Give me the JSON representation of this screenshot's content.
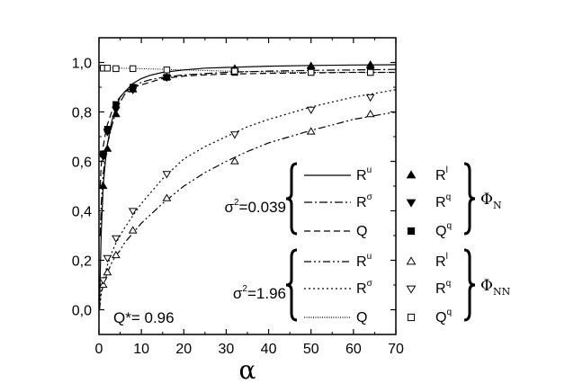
{
  "chart_data": {
    "type": "line",
    "xlabel": "α",
    "ylabel": "",
    "xlim": [
      0,
      70
    ],
    "ylim": [
      -0.1,
      1.1
    ],
    "xticks": [
      0,
      10,
      20,
      30,
      40,
      50,
      60,
      70
    ],
    "xtick_labels": [
      "0",
      "10",
      "20",
      "30",
      "40",
      "50",
      "60",
      "70"
    ],
    "yticks": [
      0.0,
      0.2,
      0.4,
      0.6,
      0.8,
      1.0
    ],
    "ytick_labels": [
      "0,0",
      "0,2",
      "0,4",
      "0,6",
      "0,8",
      "1,0"
    ],
    "annotation": "Q*= 0.96",
    "groups": [
      {
        "sigma_label": "σ",
        "sigma_sup": "2",
        "sigma_value": "=0.039",
        "phi": "Φ",
        "phi_sub": "N"
      },
      {
        "sigma_label": "σ",
        "sigma_sup": "2",
        "sigma_value": "=1.96",
        "phi": "Φ",
        "phi_sub": "NN"
      }
    ],
    "curves": [
      {
        "group": 0,
        "base": "R",
        "sup": "u",
        "style": "solid",
        "x": [
          0.1,
          0.5,
          1,
          1.5,
          2,
          3,
          4,
          5,
          6,
          8,
          10,
          12,
          15,
          20,
          25,
          30,
          40,
          50,
          60,
          70
        ],
        "y": [
          0.0,
          0.3,
          0.5,
          0.6,
          0.67,
          0.76,
          0.82,
          0.86,
          0.88,
          0.915,
          0.935,
          0.948,
          0.96,
          0.97,
          0.977,
          0.98,
          0.985,
          0.988,
          0.99,
          0.991
        ]
      },
      {
        "group": 0,
        "base": "R",
        "sup": "σ",
        "style": "dashdot",
        "x": [
          0.3,
          0.5,
          1,
          1.5,
          2,
          3,
          4,
          5,
          6,
          8,
          10,
          12,
          15,
          20,
          25,
          30,
          40,
          50,
          60,
          70
        ],
        "y": [
          0.3,
          0.42,
          0.55,
          0.62,
          0.67,
          0.74,
          0.8,
          0.84,
          0.87,
          0.9,
          0.92,
          0.93,
          0.94,
          0.95,
          0.955,
          0.96,
          0.965,
          0.968,
          0.97,
          0.972
        ]
      },
      {
        "group": 0,
        "base": "Q",
        "sup": "",
        "style": "dashed",
        "x": [
          0.3,
          0.5,
          1,
          1.5,
          2,
          3,
          4,
          5,
          6,
          8,
          10,
          12,
          15,
          20,
          25,
          30,
          40,
          50,
          60,
          70
        ],
        "y": [
          0.5,
          0.58,
          0.66,
          0.71,
          0.75,
          0.8,
          0.84,
          0.86,
          0.88,
          0.9,
          0.91,
          0.92,
          0.935,
          0.945,
          0.95,
          0.953,
          0.956,
          0.958,
          0.96,
          0.96
        ]
      },
      {
        "group": 1,
        "base": "R",
        "sup": "u",
        "style": "dashdotdot",
        "x": [
          0.1,
          0.5,
          1,
          2,
          3,
          4,
          5,
          6,
          8,
          10,
          15,
          20,
          25,
          30,
          35,
          40,
          50,
          60,
          70
        ],
        "y": [
          0.0,
          0.06,
          0.1,
          0.15,
          0.19,
          0.22,
          0.24,
          0.27,
          0.31,
          0.35,
          0.43,
          0.5,
          0.555,
          0.6,
          0.64,
          0.675,
          0.725,
          0.77,
          0.8
        ]
      },
      {
        "group": 1,
        "base": "R",
        "sup": "σ",
        "style": "dotted",
        "x": [
          0.1,
          0.5,
          1,
          2,
          3,
          4,
          5,
          6,
          8,
          10,
          15,
          20,
          25,
          30,
          35,
          40,
          50,
          60,
          70
        ],
        "y": [
          0.0,
          0.08,
          0.12,
          0.18,
          0.23,
          0.27,
          0.3,
          0.33,
          0.38,
          0.43,
          0.53,
          0.61,
          0.66,
          0.7,
          0.74,
          0.77,
          0.82,
          0.86,
          0.89
        ]
      },
      {
        "group": 1,
        "base": "Q",
        "sup": "",
        "style": "dense",
        "x": [
          0,
          5,
          10,
          20,
          30,
          40,
          50,
          60,
          70
        ],
        "y": [
          0.98,
          0.977,
          0.975,
          0.97,
          0.965,
          0.962,
          0.96,
          0.96,
          0.96
        ]
      }
    ],
    "markers": [
      {
        "group": 0,
        "base": "R",
        "sup": "l",
        "shape": "triangle-up",
        "filled": true,
        "x": [
          1,
          2,
          4,
          8,
          16,
          32,
          50,
          64
        ],
        "y": [
          0.5,
          0.65,
          0.79,
          0.89,
          0.94,
          0.975,
          0.985,
          0.99
        ]
      },
      {
        "group": 0,
        "base": "R",
        "sup": "q",
        "shape": "triangle-down",
        "filled": true,
        "x": [
          1,
          2,
          4,
          8,
          16,
          32,
          50,
          64
        ],
        "y": [
          0.62,
          0.72,
          0.81,
          0.89,
          0.94,
          0.965,
          0.97,
          0.97
        ]
      },
      {
        "group": 0,
        "base": "Q",
        "sup": "q",
        "shape": "square",
        "filled": true,
        "x": [
          1,
          2,
          4,
          8,
          16,
          32,
          50,
          64
        ],
        "y": [
          0.63,
          0.73,
          0.83,
          0.9,
          0.94,
          0.96,
          0.96,
          0.96
        ]
      },
      {
        "group": 1,
        "base": "R",
        "sup": "l",
        "shape": "triangle-up",
        "filled": false,
        "x": [
          1,
          2,
          4,
          8,
          16,
          32,
          50,
          64
        ],
        "y": [
          0.1,
          0.15,
          0.22,
          0.32,
          0.45,
          0.6,
          0.72,
          0.79
        ]
      },
      {
        "group": 1,
        "base": "R",
        "sup": "q",
        "shape": "triangle-down",
        "filled": false,
        "x": [
          1,
          2,
          4,
          8,
          16,
          32,
          50,
          64
        ],
        "y": [
          0.12,
          0.21,
          0.29,
          0.4,
          0.55,
          0.71,
          0.81,
          0.86
        ]
      },
      {
        "group": 1,
        "base": "Q",
        "sup": "q",
        "shape": "square",
        "filled": false,
        "x": [
          1,
          2,
          4,
          8,
          16,
          32,
          50,
          64
        ],
        "y": [
          0.977,
          0.977,
          0.975,
          0.975,
          0.97,
          0.965,
          0.96,
          0.96
        ]
      }
    ]
  }
}
